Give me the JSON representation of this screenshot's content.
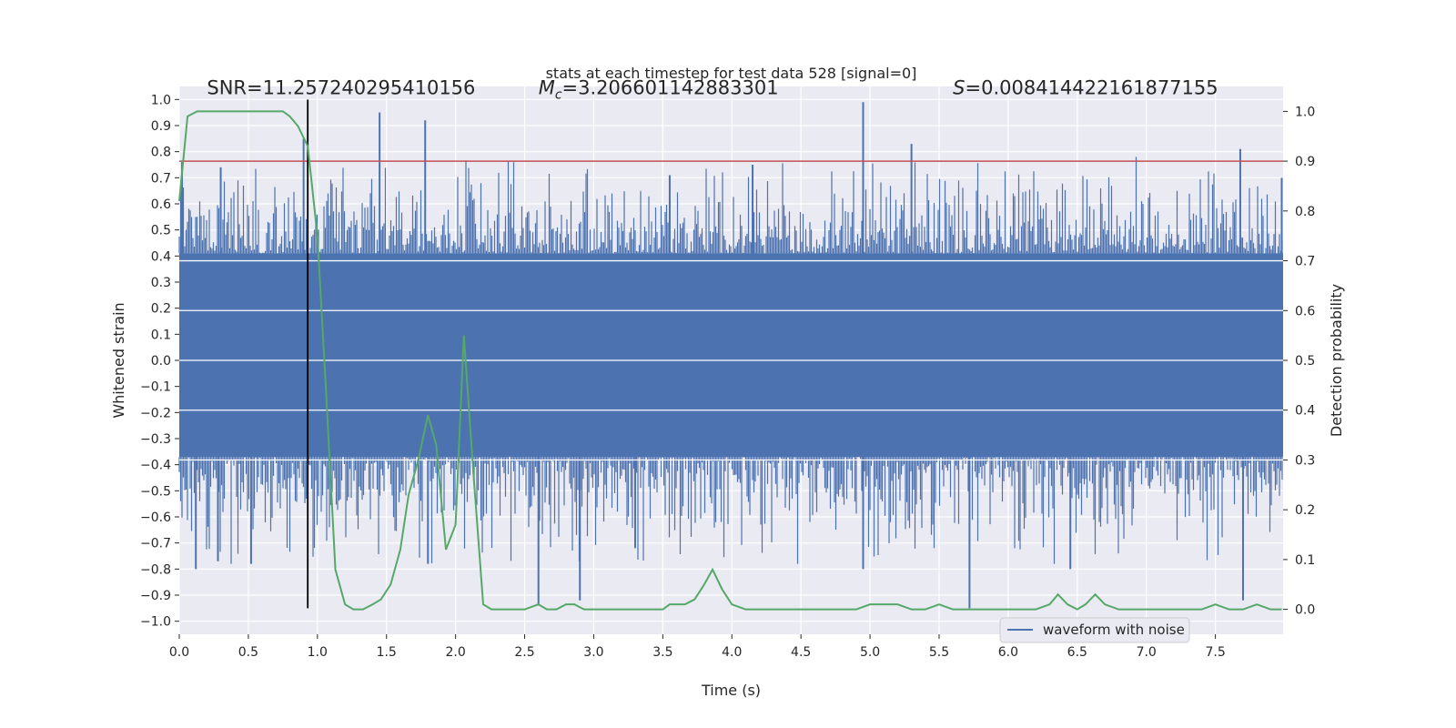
{
  "chart_data": {
    "type": "line",
    "title": "stats at each timestep for test data 528 [signal=0]",
    "xlabel": "Time (s)",
    "ylabel": "Whitened strain",
    "y2label": "Detection probability",
    "xlim": [
      0.0,
      7.99
    ],
    "ylim": [
      -1.05,
      1.05
    ],
    "y2lim": [
      -0.05,
      1.05
    ],
    "x_ticks": [
      0.0,
      0.5,
      1.0,
      1.5,
      2.0,
      2.5,
      3.0,
      3.5,
      4.0,
      4.5,
      5.0,
      5.5,
      6.0,
      6.5,
      7.0,
      7.5
    ],
    "x_tick_labels": [
      "0.0",
      "0.5",
      "1.0",
      "1.5",
      "2.0",
      "2.5",
      "3.0",
      "3.5",
      "4.0",
      "4.5",
      "5.0",
      "5.5",
      "6.0",
      "6.5",
      "7.0",
      "7.5"
    ],
    "y_ticks": [
      -1.0,
      -0.9,
      -0.8,
      -0.7,
      -0.6,
      -0.5,
      -0.4,
      -0.3,
      -0.2,
      -0.1,
      0.0,
      0.1,
      0.2,
      0.3,
      0.4,
      0.5,
      0.6,
      0.7,
      0.8,
      0.9,
      1.0
    ],
    "y_tick_labels": [
      "−1.0",
      "−0.9",
      "−0.8",
      "−0.7",
      "−0.6",
      "−0.5",
      "−0.4",
      "−0.3",
      "−0.2",
      "−0.1",
      "0.0",
      "0.1",
      "0.2",
      "0.3",
      "0.4",
      "0.5",
      "0.6",
      "0.7",
      "0.8",
      "0.9",
      "1.0"
    ],
    "y2_ticks": [
      0.0,
      0.1,
      0.2,
      0.3,
      0.4,
      0.5,
      0.6,
      0.7,
      0.8,
      0.9,
      1.0
    ],
    "y2_tick_labels": [
      "0.0",
      "0.1",
      "0.2",
      "0.3",
      "0.4",
      "0.5",
      "0.6",
      "0.7",
      "0.8",
      "0.9",
      "1.0"
    ],
    "y2_grid_ticks": [
      0.3,
      0.4,
      0.5,
      0.6,
      0.7
    ],
    "grid": true,
    "annotations": [
      {
        "text": "SNR=11.257240295410156",
        "x": 0.2,
        "y": 1.02
      },
      {
        "text_italic": "M",
        "text_sub": "c",
        "text": "=3.206601142883301",
        "x": 2.6,
        "y": 1.02
      },
      {
        "text_italic": "S",
        "text": "=0.008414422161877155",
        "x": 5.6,
        "y": 1.02
      }
    ],
    "threshold_line": {
      "y2": 0.9,
      "color": "#c44e52"
    },
    "vertical_line": {
      "x": 0.93,
      "y_range": [
        -0.95,
        1.0
      ],
      "color": "#000000"
    },
    "series": [
      {
        "name": "waveform with noise",
        "axis": "y",
        "color": "#4c72b0",
        "style": "noise-band",
        "band_lo": -0.37,
        "band_hi": 0.41,
        "envelope_typical": 0.55,
        "spikes": [
          [
            0.02,
            0.76
          ],
          [
            0.12,
            -0.8
          ],
          [
            0.28,
            -0.77
          ],
          [
            0.3,
            0.74
          ],
          [
            0.52,
            -0.78
          ],
          [
            0.9,
            0.85
          ],
          [
            1.45,
            0.95
          ],
          [
            1.78,
            0.92
          ],
          [
            1.8,
            -0.78
          ],
          [
            2.6,
            -0.94
          ],
          [
            2.9,
            -0.92
          ],
          [
            3.3,
            -0.72
          ],
          [
            3.55,
            0.71
          ],
          [
            4.15,
            0.75
          ],
          [
            4.95,
            0.99
          ],
          [
            4.95,
            -0.8
          ],
          [
            5.3,
            0.83
          ],
          [
            5.72,
            -0.95
          ],
          [
            6.45,
            -0.8
          ],
          [
            7.68,
            0.81
          ],
          [
            7.7,
            -0.92
          ],
          [
            7.98,
            0.7
          ]
        ]
      },
      {
        "name": "",
        "axis": "y2",
        "color": "#55a868",
        "x": [
          0.0,
          0.06,
          0.13,
          0.2,
          0.3,
          0.4,
          0.5,
          0.6,
          0.7,
          0.75,
          0.8,
          0.86,
          0.93,
          1.0,
          1.06,
          1.13,
          1.2,
          1.26,
          1.33,
          1.4,
          1.46,
          1.53,
          1.6,
          1.66,
          1.73,
          1.8,
          1.86,
          1.93,
          2.0,
          2.06,
          2.13,
          2.2,
          2.26,
          2.33,
          2.4,
          2.5,
          2.6,
          2.66,
          2.73,
          2.8,
          2.86,
          2.93,
          3.0,
          3.06,
          3.13,
          3.2,
          3.3,
          3.4,
          3.5,
          3.55,
          3.6,
          3.66,
          3.73,
          3.8,
          3.86,
          3.93,
          4.0,
          4.1,
          4.3,
          4.5,
          4.7,
          4.85,
          4.9,
          5.0,
          5.1,
          5.2,
          5.3,
          5.4,
          5.5,
          5.6,
          5.7,
          5.8,
          5.9,
          6.0,
          6.1,
          6.2,
          6.3,
          6.36,
          6.43,
          6.5,
          6.56,
          6.63,
          6.7,
          6.8,
          6.9,
          7.0,
          7.1,
          7.2,
          7.3,
          7.4,
          7.5,
          7.6,
          7.7,
          7.8,
          7.9,
          7.98
        ],
        "y": [
          0.82,
          0.99,
          1.0,
          1.0,
          1.0,
          1.0,
          1.0,
          1.0,
          1.0,
          1.0,
          0.99,
          0.97,
          0.93,
          0.75,
          0.45,
          0.08,
          0.01,
          0.0,
          0.0,
          0.01,
          0.02,
          0.05,
          0.12,
          0.23,
          0.3,
          0.39,
          0.33,
          0.12,
          0.17,
          0.55,
          0.27,
          0.01,
          0.0,
          0.0,
          0.0,
          0.0,
          0.01,
          0.0,
          0.0,
          0.01,
          0.01,
          0.0,
          0.0,
          0.0,
          0.0,
          0.0,
          0.0,
          0.0,
          0.0,
          0.01,
          0.01,
          0.01,
          0.02,
          0.05,
          0.08,
          0.04,
          0.01,
          0.0,
          0.0,
          0.0,
          0.0,
          0.0,
          0.0,
          0.01,
          0.01,
          0.01,
          0.0,
          0.0,
          0.01,
          0.0,
          0.0,
          0.0,
          0.0,
          0.0,
          0.0,
          0.0,
          0.01,
          0.03,
          0.01,
          0.0,
          0.01,
          0.03,
          0.01,
          0.0,
          0.0,
          0.0,
          0.0,
          0.0,
          0.0,
          0.0,
          0.01,
          0.0,
          0.0,
          0.01,
          0.0,
          0.0
        ]
      }
    ],
    "legend": {
      "position": "bottom-right",
      "entries": [
        "waveform with noise"
      ]
    }
  }
}
